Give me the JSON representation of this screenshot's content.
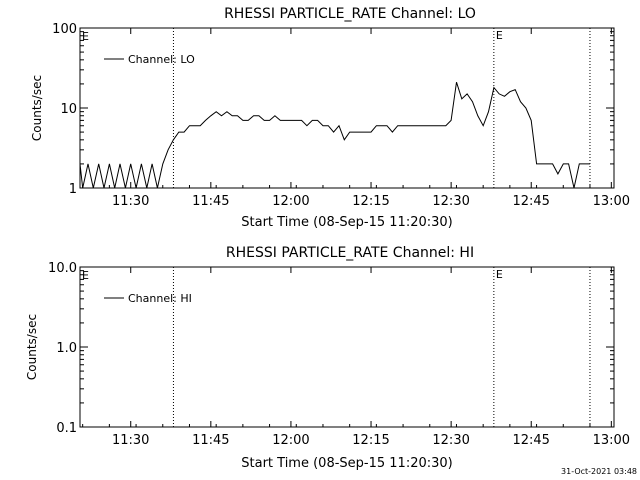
{
  "footer_timestamp": "31-Oct-2021 03:48",
  "chart_data": [
    {
      "type": "line",
      "title": "RHESSI PARTICLE_RATE Channel: LO",
      "xlabel": "Start Time (08-Sep-15 11:20:30)",
      "ylabel": "Counts/sec",
      "yscale": "log",
      "ylim": [
        1,
        100
      ],
      "xlim_minutes_after_start": [
        0,
        100
      ],
      "x_tick_labels": [
        "11:30",
        "11:45",
        "12:00",
        "12:15",
        "12:30",
        "12:45",
        "13:00"
      ],
      "y_tick_labels": [
        "1",
        "10",
        "100"
      ],
      "markers": [
        {
          "time": "11:38",
          "label": ""
        },
        {
          "time": "12:38",
          "label": "E"
        },
        {
          "time": "12:56",
          "label": ""
        }
      ],
      "corner_label": "E",
      "series": [
        {
          "name": "Channel: LO",
          "x": [
            "11:20:30",
            "11:21",
            "11:22",
            "11:23",
            "11:24",
            "11:25",
            "11:26",
            "11:27",
            "11:28",
            "11:29",
            "11:30",
            "11:31",
            "11:32",
            "11:33",
            "11:34",
            "11:35",
            "11:36",
            "11:37",
            "11:38",
            "11:39",
            "11:40",
            "11:41",
            "11:42",
            "11:43",
            "11:44",
            "11:45",
            "11:46",
            "11:47",
            "11:48",
            "11:49",
            "11:50",
            "11:51",
            "11:52",
            "11:53",
            "11:54",
            "11:55",
            "11:56",
            "11:57",
            "11:58",
            "11:59",
            "12:00",
            "12:01",
            "12:02",
            "12:03",
            "12:04",
            "12:05",
            "12:06",
            "12:07",
            "12:08",
            "12:09",
            "12:10",
            "12:11",
            "12:12",
            "12:13",
            "12:14",
            "12:15",
            "12:16",
            "12:17",
            "12:18",
            "12:19",
            "12:20",
            "12:21",
            "12:22",
            "12:23",
            "12:24",
            "12:25",
            "12:26",
            "12:27",
            "12:28",
            "12:29",
            "12:30",
            "12:31",
            "12:32",
            "12:33",
            "12:34",
            "12:35",
            "12:36",
            "12:37",
            "12:38",
            "12:39",
            "12:40",
            "12:41",
            "12:42",
            "12:43",
            "12:44",
            "12:45",
            "12:46",
            "12:47",
            "12:48",
            "12:49",
            "12:50",
            "12:51",
            "12:52",
            "12:53",
            "12:54",
            "12:55",
            "12:56"
          ],
          "values": [
            2,
            1,
            2,
            1,
            2,
            1,
            2,
            1,
            2,
            1,
            2,
            1,
            2,
            1,
            2,
            1,
            2,
            3,
            4,
            5,
            5,
            6,
            6,
            6,
            7,
            8,
            9,
            8,
            9,
            8,
            8,
            7,
            7,
            8,
            8,
            7,
            7,
            8,
            7,
            7,
            7,
            7,
            7,
            6,
            7,
            7,
            6,
            6,
            5,
            6,
            4,
            5,
            5,
            5,
            5,
            5,
            6,
            6,
            6,
            5,
            6,
            6,
            6,
            6,
            6,
            6,
            6,
            6,
            6,
            6,
            7,
            21,
            13,
            15,
            12,
            8,
            6,
            9,
            18,
            15,
            14,
            16,
            17,
            12,
            10,
            7,
            2,
            2,
            2,
            2,
            1.5,
            2,
            2,
            1,
            2,
            2,
            2
          ]
        }
      ]
    },
    {
      "type": "line",
      "title": "RHESSI PARTICLE_RATE Channel: HI",
      "xlabel": "Start Time (08-Sep-15 11:20:30)",
      "ylabel": "Counts/sec",
      "yscale": "log",
      "ylim": [
        0.1,
        10
      ],
      "xlim_minutes_after_start": [
        0,
        100
      ],
      "x_tick_labels": [
        "11:30",
        "11:45",
        "12:00",
        "12:15",
        "12:30",
        "12:45",
        "13:00"
      ],
      "y_tick_labels": [
        "0.1",
        "1.0",
        "10.0"
      ],
      "markers": [
        {
          "time": "11:38",
          "label": ""
        },
        {
          "time": "12:38",
          "label": "E"
        },
        {
          "time": "12:56",
          "label": ""
        }
      ],
      "corner_label": "E",
      "series": [
        {
          "name": "Channel: HI",
          "x": [],
          "values": []
        }
      ]
    }
  ]
}
